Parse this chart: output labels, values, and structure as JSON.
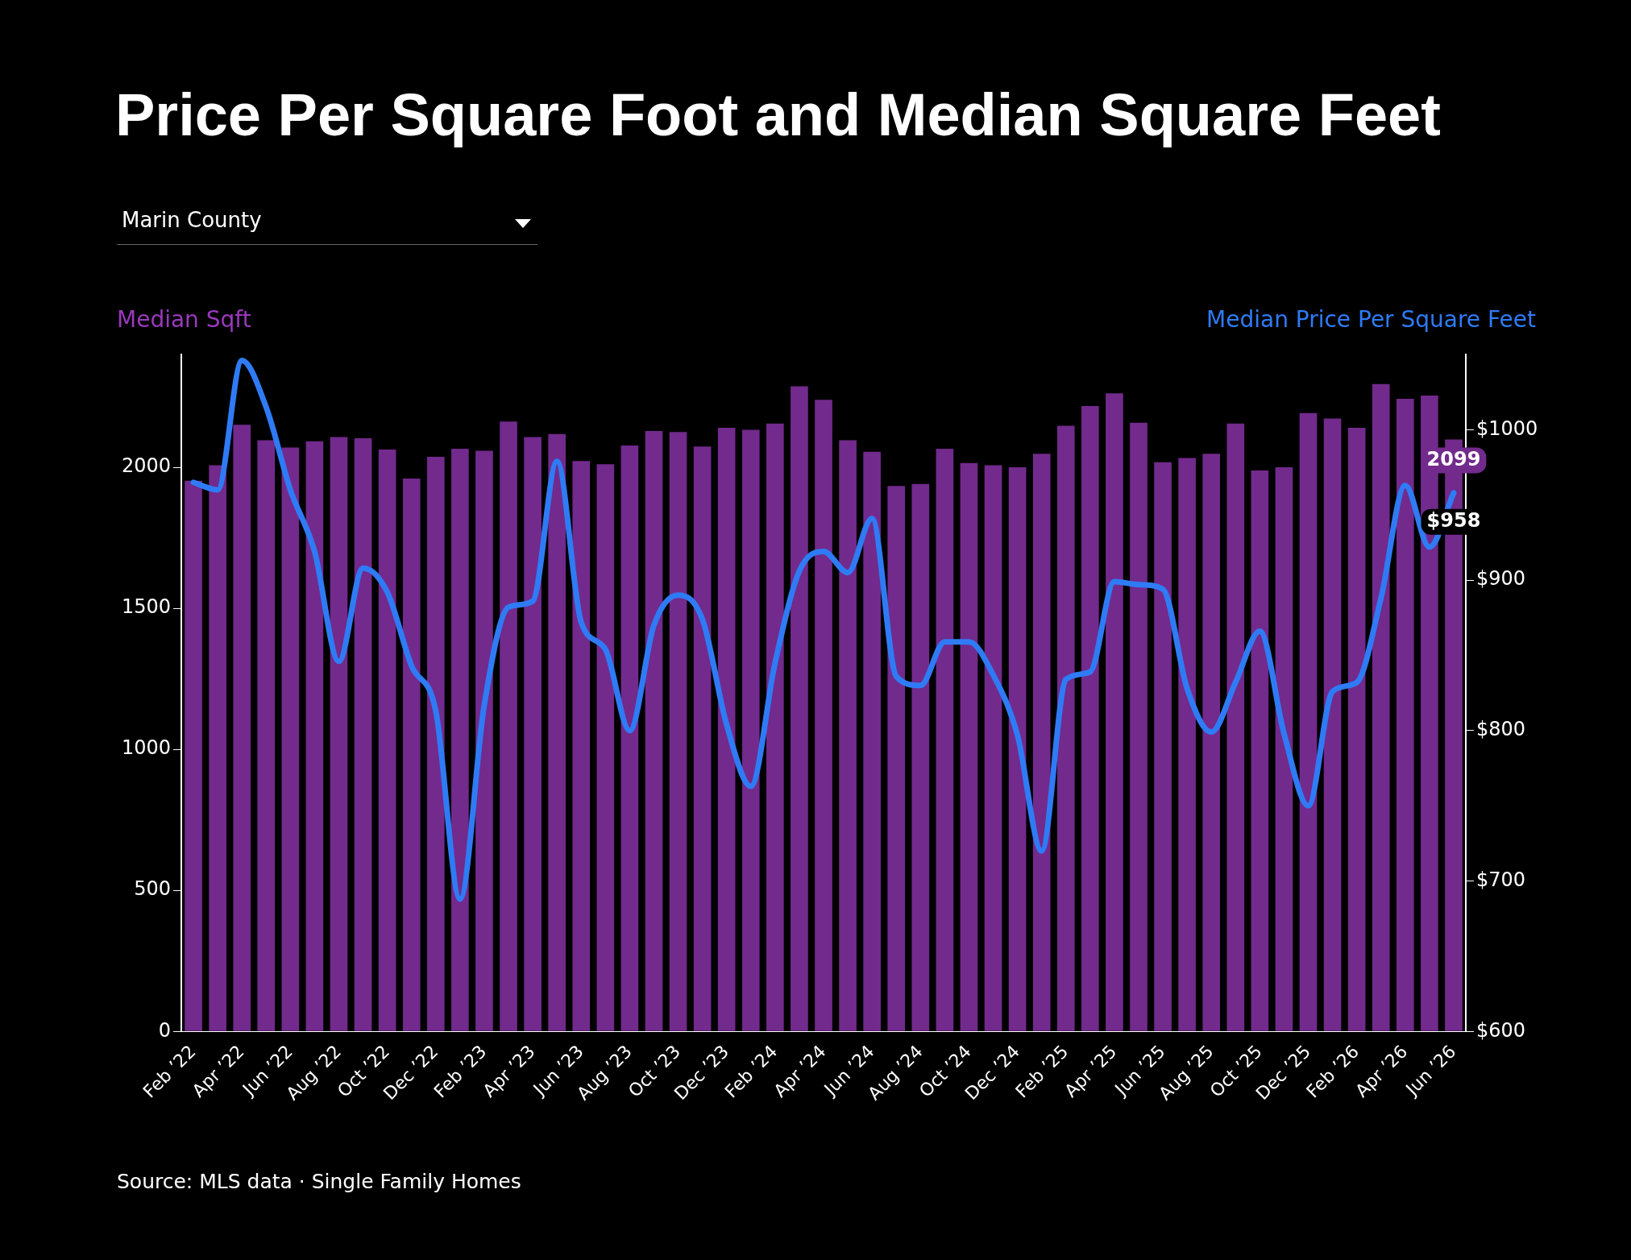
{
  "chart_data": {
    "type": "bar",
    "title": "Price Per Square Foot and Median Square Feet",
    "subtitle": "Marin County",
    "ylabel": "Median Sqft",
    "y2label": "Median Price Per Square Feet",
    "categories": [
      "Feb ’22",
      null,
      "Apr ’22",
      null,
      "Jun ’22",
      null,
      "Aug ’22",
      null,
      "Oct ’22",
      null,
      "Dec ’22",
      null,
      "Feb ’23",
      null,
      "Apr ’23",
      null,
      "Jun ’23",
      null,
      "Aug ’23",
      null,
      "Oct ’23",
      null,
      "Dec ’23",
      null,
      "Feb ’24",
      null,
      "Apr ’24",
      null,
      "Jun ’24",
      null,
      "Aug ’24",
      null,
      "Oct ’24",
      null,
      "Dec ’24",
      null,
      "Feb ’25",
      null,
      "Apr ’25",
      null,
      "Jun ’25",
      null,
      "Aug ’25",
      null,
      "Oct ’25",
      null,
      "Dec ’25",
      null,
      "Feb ’26",
      null,
      "Apr ’26",
      null,
      "Jun ’26"
    ],
    "series": [
      {
        "color": "#722a8c",
        "values": [
          1952,
          2007,
          2151,
          2096,
          2070,
          2092,
          2107,
          2103,
          2063,
          1960,
          2037,
          2066,
          2059,
          2162,
          2107,
          2118,
          2022,
          2011,
          2077,
          2129,
          2125,
          2074,
          2140,
          2133,
          2155,
          2287,
          2239,
          2096,
          2055,
          1934,
          1941,
          2066,
          2015,
          2007,
          2000,
          2048,
          2147,
          2217,
          2262,
          2158,
          2018,
          2033,
          2048,
          2155,
          1989,
          2000,
          2192,
          2173,
          2140,
          2295,
          2243,
          2254,
          2099
        ],
        "value_labels": [
          null,
          null,
          null,
          null,
          null,
          null,
          null,
          null,
          null,
          null,
          null,
          null,
          null,
          null,
          null,
          null,
          null,
          null,
          null,
          null,
          null,
          null,
          null,
          null,
          null,
          null,
          null,
          null,
          null,
          null,
          null,
          null,
          null,
          null,
          null,
          null,
          null,
          null,
          null,
          null,
          null,
          null,
          null,
          null,
          null,
          null,
          null,
          null,
          null,
          null,
          null,
          null,
          "2099"
        ]
      },
      {
        "type": "line",
        "axis": "y2",
        "color": "#2f7bf5",
        "values": [
          965,
          960,
          1046,
          1015,
          960,
          919,
          846,
          908,
          892,
          843,
          813,
          688,
          817,
          882,
          886,
          979,
          872,
          854,
          800,
          870,
          890,
          874,
          804,
          763,
          845,
          906,
          919,
          905,
          941,
          836,
          830,
          859,
          859,
          837,
          797,
          720,
          834,
          839,
          899,
          897,
          894,
          828,
          799,
          832,
          866,
          798,
          750,
          826,
          832,
          888,
          963,
          922,
          958
        ],
        "value_labels": [
          null,
          null,
          null,
          null,
          null,
          null,
          null,
          null,
          null,
          null,
          null,
          null,
          null,
          null,
          null,
          null,
          null,
          null,
          null,
          null,
          null,
          null,
          null,
          null,
          null,
          null,
          null,
          null,
          null,
          null,
          null,
          null,
          null,
          null,
          null,
          null,
          null,
          null,
          null,
          null,
          null,
          null,
          null,
          null,
          null,
          null,
          null,
          null,
          null,
          null,
          null,
          null,
          "$958"
        ]
      }
    ],
    "ylim": [
      0,
      2400
    ],
    "yticks": [
      0,
      500,
      1000,
      1500,
      2000
    ],
    "y2lim": [
      600,
      1050
    ],
    "y2ticks": [
      {
        "value": 600,
        "label": "$600"
      },
      {
        "value": 700,
        "label": "$700"
      },
      {
        "value": 800,
        "label": "$800"
      },
      {
        "value": 900,
        "label": "$900"
      },
      {
        "value": 1000,
        "label": "$1000"
      }
    ],
    "grid": false,
    "legend": false,
    "marker": "none",
    "line_style": "solid",
    "annotations": [
      "Source: MLS data · Single Family Homes"
    ]
  }
}
